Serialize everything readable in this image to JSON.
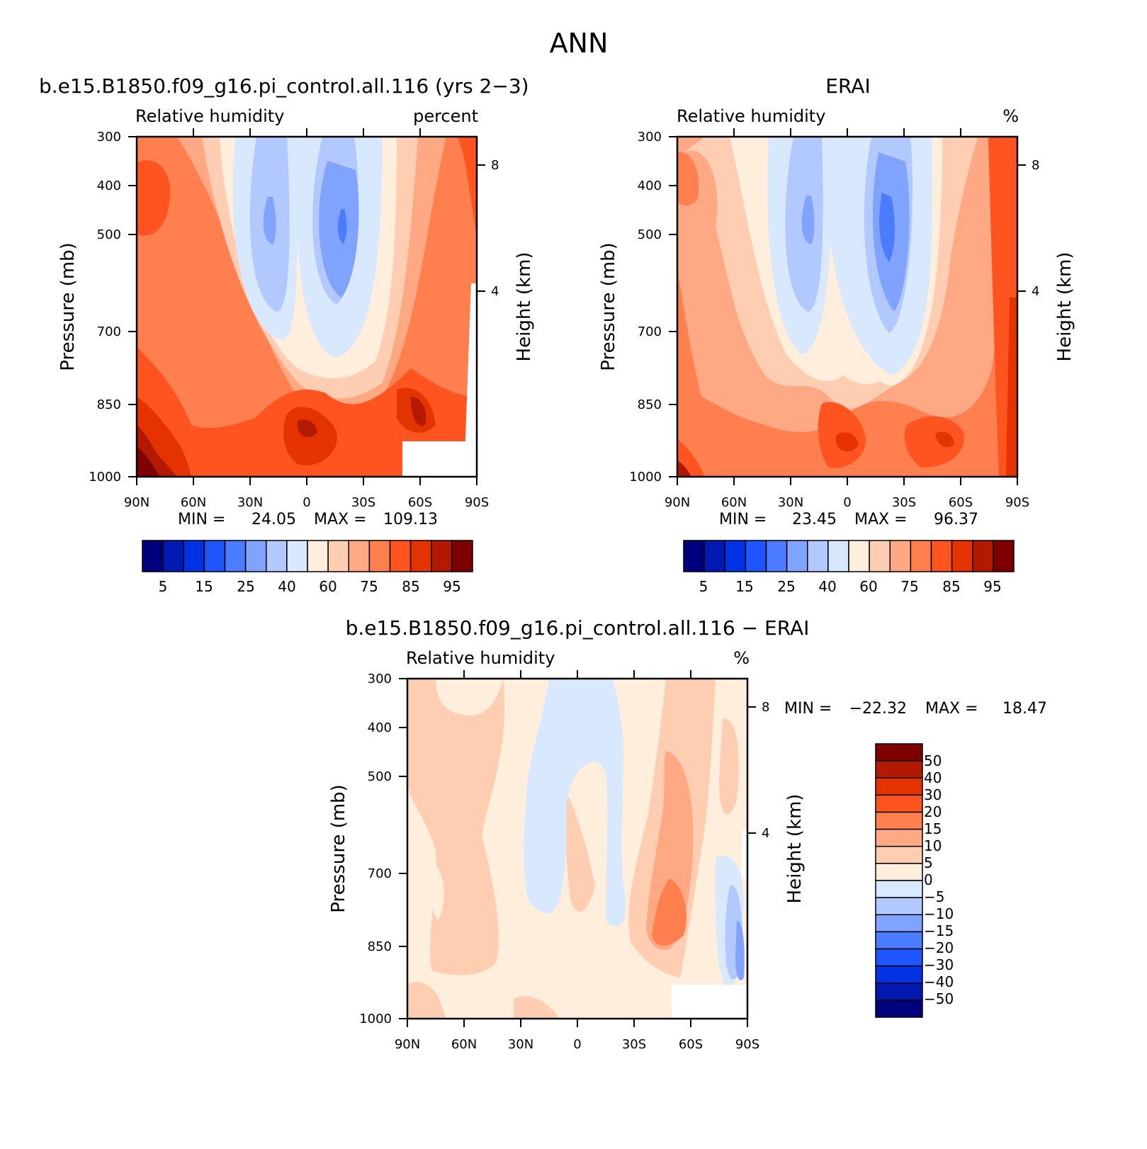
{
  "page": {
    "title": "ANN"
  },
  "panels": [
    {
      "id": "model",
      "case_title": "b.e15.B1850.f09_g16.pi_control.all.116 (yrs 2-3)",
      "left_label": "Relative humidity",
      "right_label": "percent",
      "stats": {
        "min_label": "MIN =",
        "min": "24.05",
        "max_label": "MAX =",
        "max": "109.13"
      },
      "colorbar_labels": [
        "5",
        "15",
        "25",
        "40",
        "60",
        "75",
        "85",
        "95"
      ]
    },
    {
      "id": "obs",
      "case_title": "ERAI",
      "left_label": "Relative humidity",
      "right_label": "%",
      "stats": {
        "min_label": "MIN =",
        "min": "23.45",
        "max_label": "MAX =",
        "max": "96.37"
      },
      "colorbar_labels": [
        "5",
        "15",
        "25",
        "40",
        "60",
        "75",
        "85",
        "95"
      ]
    },
    {
      "id": "diff",
      "case_title": "b.e15.B1850.f09_g16.pi_control.all.116 - ERAI",
      "left_label": "Relative humidity",
      "right_label": "%",
      "stats": {
        "min_label": "MIN =",
        "min": "-22.32",
        "max_label": "MAX =",
        "max": "18.47"
      },
      "colorbar_labels": [
        "50",
        "40",
        "30",
        "20",
        "15",
        "10",
        "5",
        "0",
        "-5",
        "-10",
        "-15",
        "-20",
        "-30",
        "-40",
        "-50"
      ]
    }
  ],
  "axes": {
    "ylabel": "Pressure (mb)",
    "ylabel_right": "Height (km)",
    "y_ticks": [
      "300",
      "400",
      "500",
      "700",
      "850",
      "1000"
    ],
    "y_right_ticks": [
      "8",
      "4"
    ],
    "x_ticks": [
      "90N",
      "60N",
      "30N",
      "0",
      "30S",
      "60S",
      "90S"
    ]
  },
  "colors": {
    "abs_scale": [
      "#00007f",
      "#0019b2",
      "#0032e5",
      "#1e55ff",
      "#4b7cff",
      "#7fa3ff",
      "#b2c9ff",
      "#d8e8ff",
      "#ffeedc",
      "#ffcdb2",
      "#ffa884",
      "#ff7f4f",
      "#ff5420",
      "#e53300",
      "#b21900",
      "#7f0000"
    ],
    "diff_scale": [
      "#7f0000",
      "#b21900",
      "#e53300",
      "#ff5420",
      "#ff7f4f",
      "#ffa884",
      "#ffcdb2",
      "#ffeedc",
      "#d8e8ff",
      "#b2c9ff",
      "#7fa3ff",
      "#4b7cff",
      "#1e55ff",
      "#0032e5",
      "#0019b2",
      "#00007f"
    ]
  },
  "chart_data": [
    {
      "type": "heatmap",
      "title": "b.e15.B1850.f09_g16.pi_control.all.116 (yrs 2-3)",
      "variable": "Relative humidity",
      "units": "percent",
      "xlabel": "",
      "ylabel": "Pressure (mb)",
      "ylabel_right": "Height (km)",
      "x_range": [
        90,
        -90
      ],
      "y_range": [
        300,
        1000
      ],
      "y_scale": "log",
      "levels": [
        5,
        10,
        15,
        20,
        25,
        30,
        40,
        50,
        60,
        70,
        75,
        80,
        85,
        90,
        95
      ],
      "min": 24.05,
      "max": 109.13
    },
    {
      "type": "heatmap",
      "title": "ERAI",
      "variable": "Relative humidity",
      "units": "%",
      "xlabel": "",
      "ylabel": "Pressure (mb)",
      "ylabel_right": "Height (km)",
      "x_range": [
        90,
        -90
      ],
      "y_range": [
        300,
        1000
      ],
      "y_scale": "log",
      "levels": [
        5,
        10,
        15,
        20,
        25,
        30,
        40,
        50,
        60,
        70,
        75,
        80,
        85,
        90,
        95
      ],
      "min": 23.45,
      "max": 96.37
    },
    {
      "type": "heatmap",
      "title": "b.e15.B1850.f09_g16.pi_control.all.116 - ERAI",
      "variable": "Relative humidity",
      "units": "%",
      "xlabel": "",
      "ylabel": "Pressure (mb)",
      "ylabel_right": "Height (km)",
      "x_range": [
        90,
        -90
      ],
      "y_range": [
        300,
        1000
      ],
      "y_scale": "log",
      "levels": [
        -50,
        -40,
        -30,
        -20,
        -15,
        -10,
        -5,
        0,
        5,
        10,
        15,
        20,
        30,
        40,
        50
      ],
      "min": -22.32,
      "max": 18.47
    }
  ]
}
